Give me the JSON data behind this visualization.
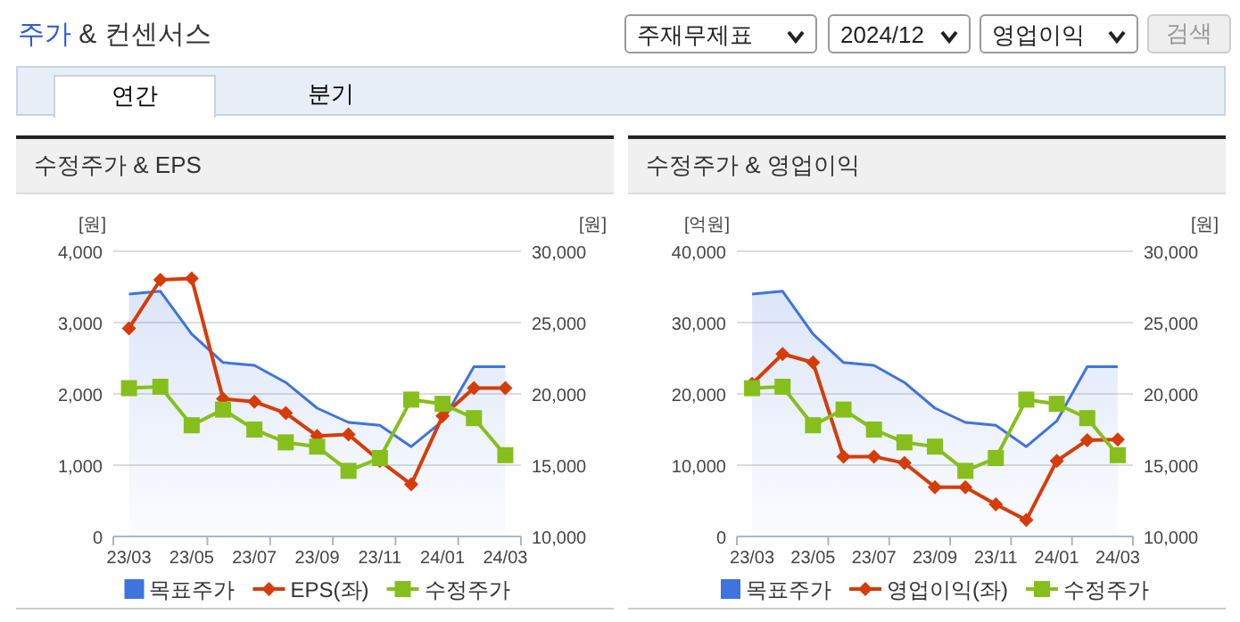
{
  "chart_data": [
    {
      "type": "other",
      "title": "주가 & 컨센서스",
      "annotations": [
        "주재무제표",
        "2024/12",
        "영업이익",
        "검색",
        "연간",
        "분기"
      ]
    },
    {
      "type": "line",
      "title": "수정주가 & EPS",
      "ylabel": "[원]",
      "y2label": "[원]",
      "categories": [
        "23/03",
        null,
        "23/05",
        null,
        "23/07",
        null,
        "23/09",
        null,
        "23/11",
        null,
        "24/01",
        null,
        "24/03"
      ],
      "ylim": [
        0,
        4000
      ],
      "yticks": [
        0,
        {
          "value": 1000,
          "label": "1,000"
        },
        {
          "value": 2000,
          "label": "2,000"
        },
        {
          "value": 3000,
          "label": "3,000"
        },
        {
          "value": 4000,
          "label": "4,000"
        }
      ],
      "y2lim": [
        10000,
        30000
      ],
      "y2ticks": [
        {
          "value": 10000,
          "label": "10,000"
        },
        {
          "value": 15000,
          "label": "15,000"
        },
        {
          "value": 20000,
          "label": "20,000"
        },
        {
          "value": 25000,
          "label": "25,000"
        },
        {
          "value": 30000,
          "label": "30,000"
        }
      ],
      "grid": "y",
      "legend": "bottom",
      "series": [
        {
          "name": "목표주가",
          "type": "area",
          "axis": "y2",
          "color": "#3f73dd",
          "values": [
            27000,
            27200,
            24200,
            22200,
            22000,
            20800,
            19000,
            18000,
            17800,
            16300,
            18100,
            21900,
            21900
          ]
        },
        {
          "name": "EPS(좌)",
          "type": "line",
          "marker": "diamond",
          "color": "#d63c0a",
          "values": [
            2920,
            3600,
            3620,
            1930,
            1890,
            1730,
            1410,
            1430,
            1060,
            730,
            1690,
            2080,
            2080
          ]
        },
        {
          "name": "수정주가",
          "type": "line",
          "axis": "y2",
          "marker": "square",
          "color": "#86bf1c",
          "values": [
            20400,
            20500,
            17800,
            18900,
            17500,
            16600,
            16300,
            14600,
            15500,
            19600,
            19300,
            18300,
            15700
          ]
        }
      ]
    },
    {
      "type": "line",
      "title": "수정주가 & 영업이익",
      "ylabel": "[억원]",
      "y2label": "[원]",
      "categories": [
        "23/03",
        null,
        "23/05",
        null,
        "23/07",
        null,
        "23/09",
        null,
        "23/11",
        null,
        "24/01",
        null,
        "24/03"
      ],
      "ylim": [
        0,
        40000
      ],
      "yticks": [
        0,
        {
          "value": 10000,
          "label": "10,000"
        },
        {
          "value": 20000,
          "label": "20,000"
        },
        {
          "value": 30000,
          "label": "30,000"
        },
        {
          "value": 40000,
          "label": "40,000"
        }
      ],
      "y2lim": [
        10000,
        30000
      ],
      "y2ticks": [
        {
          "value": 10000,
          "label": "10,000"
        },
        {
          "value": 15000,
          "label": "15,000"
        },
        {
          "value": 20000,
          "label": "20,000"
        },
        {
          "value": 25000,
          "label": "25,000"
        },
        {
          "value": 30000,
          "label": "30,000"
        }
      ],
      "grid": "y",
      "legend": "bottom",
      "series": [
        {
          "name": "목표주가",
          "type": "area",
          "axis": "y2",
          "color": "#3f73dd",
          "values": [
            27000,
            27200,
            24200,
            22200,
            22000,
            20800,
            19000,
            18000,
            17800,
            16300,
            18100,
            21900,
            21900
          ]
        },
        {
          "name": "영업이익(좌)",
          "type": "line",
          "marker": "diamond",
          "color": "#d63c0a",
          "values": [
            21400,
            25600,
            24400,
            11200,
            11200,
            10300,
            6900,
            6900,
            4500,
            2300,
            10600,
            13500,
            13600
          ]
        },
        {
          "name": "수정주가",
          "type": "line",
          "axis": "y2",
          "marker": "square",
          "color": "#86bf1c",
          "values": [
            20400,
            20500,
            17800,
            18900,
            17500,
            16600,
            16300,
            14600,
            15500,
            19600,
            19300,
            18300,
            15700
          ]
        }
      ]
    }
  ]
}
